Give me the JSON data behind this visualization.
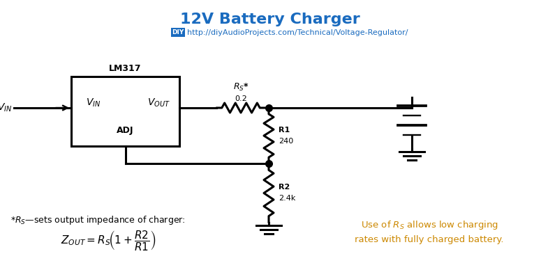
{
  "title": "12V Battery Charger",
  "title_color": "#1a6bbf",
  "title_fontsize": 16,
  "url_text": "http://diyAudioProjects.com/Technical/Voltage-Regulator/",
  "url_color": "#1a6bbf",
  "bg_color": "#ffffff",
  "lm317_label": "LM317",
  "adj_label": "ADJ",
  "rs_value": "0.2",
  "r1_label": "R1",
  "r1_value": "240",
  "r2_label": "R2",
  "r2_value": "2.4k",
  "note_color": "#cc8800",
  "circuit_color": "#000000",
  "lw": 2.2
}
